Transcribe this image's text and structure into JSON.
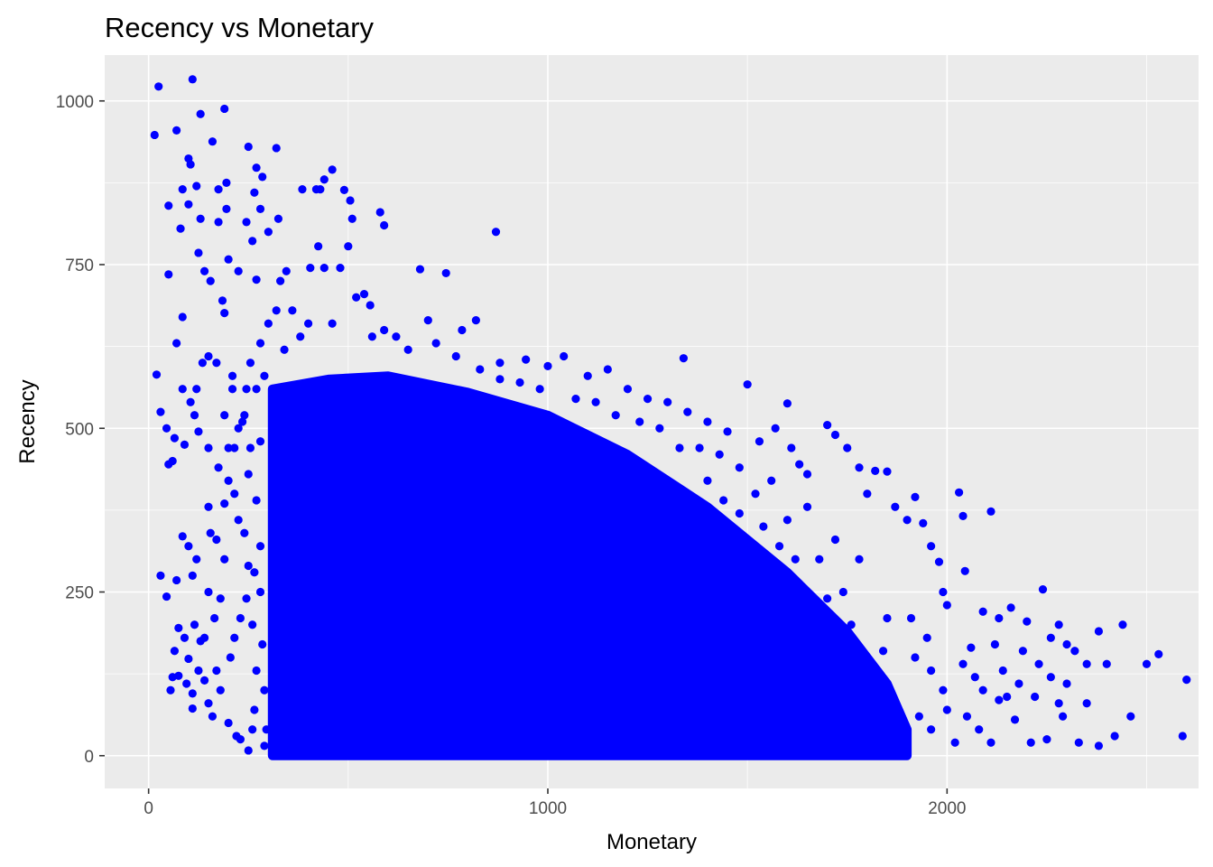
{
  "chart_data": {
    "type": "scatter",
    "title": "Recency vs Monetary",
    "xlabel": "Monetary",
    "ylabel": "Recency",
    "xlim": [
      -110,
      2630
    ],
    "ylim": [
      -50,
      1070
    ],
    "x_ticks": [
      0,
      1000,
      2000
    ],
    "x_tick_labels": [
      "0",
      "1000",
      "2000"
    ],
    "y_ticks": [
      0,
      250,
      500,
      750,
      1000
    ],
    "y_tick_labels": [
      "0",
      "250",
      "500",
      "750",
      "1000"
    ],
    "grid": true,
    "point_color": "#0000ff",
    "panel_background": "#ebebeb",
    "dense_region": {
      "description_free": true,
      "polygon": [
        [
          310,
          0
        ],
        [
          310,
          560
        ],
        [
          450,
          575
        ],
        [
          600,
          580
        ],
        [
          800,
          555
        ],
        [
          1000,
          520
        ],
        [
          1200,
          460
        ],
        [
          1400,
          380
        ],
        [
          1600,
          280
        ],
        [
          1750,
          190
        ],
        [
          1850,
          110
        ],
        [
          1900,
          40
        ],
        [
          1900,
          0
        ]
      ]
    },
    "sparse_points": [
      [
        15,
        948
      ],
      [
        25,
        1022
      ],
      [
        110,
        1033
      ],
      [
        130,
        980
      ],
      [
        190,
        988
      ],
      [
        70,
        955
      ],
      [
        160,
        938
      ],
      [
        250,
        930
      ],
      [
        100,
        912
      ],
      [
        105,
        903
      ],
      [
        85,
        865
      ],
      [
        120,
        870
      ],
      [
        50,
        840
      ],
      [
        100,
        842
      ],
      [
        175,
        865
      ],
      [
        195,
        875
      ],
      [
        270,
        898
      ],
      [
        285,
        884
      ],
      [
        320,
        928
      ],
      [
        460,
        895
      ],
      [
        440,
        880
      ],
      [
        490,
        864
      ],
      [
        505,
        848
      ],
      [
        430,
        865
      ],
      [
        80,
        805
      ],
      [
        130,
        820
      ],
      [
        175,
        815
      ],
      [
        195,
        835
      ],
      [
        245,
        815
      ],
      [
        265,
        860
      ],
      [
        280,
        835
      ],
      [
        300,
        800
      ],
      [
        325,
        820
      ],
      [
        385,
        865
      ],
      [
        420,
        865
      ],
      [
        510,
        820
      ],
      [
        580,
        830
      ],
      [
        590,
        810
      ],
      [
        870,
        800
      ],
      [
        260,
        786
      ],
      [
        425,
        778
      ],
      [
        500,
        778
      ],
      [
        125,
        768
      ],
      [
        200,
        758
      ],
      [
        50,
        735
      ],
      [
        140,
        740
      ],
      [
        225,
        740
      ],
      [
        345,
        740
      ],
      [
        405,
        745
      ],
      [
        440,
        745
      ],
      [
        480,
        745
      ],
      [
        680,
        743
      ],
      [
        745,
        737
      ],
      [
        270,
        727
      ],
      [
        330,
        725
      ],
      [
        155,
        725
      ],
      [
        85,
        670
      ],
      [
        70,
        630
      ],
      [
        185,
        695
      ],
      [
        190,
        676
      ],
      [
        20,
        582
      ],
      [
        30,
        525
      ],
      [
        45,
        500
      ],
      [
        65,
        485
      ],
      [
        50,
        445
      ],
      [
        60,
        450
      ],
      [
        85,
        560
      ],
      [
        105,
        540
      ],
      [
        115,
        520
      ],
      [
        125,
        495
      ],
      [
        150,
        470
      ],
      [
        90,
        475
      ],
      [
        150,
        380
      ],
      [
        190,
        385
      ],
      [
        85,
        335
      ],
      [
        100,
        320
      ],
      [
        120,
        300
      ],
      [
        155,
        340
      ],
      [
        30,
        275
      ],
      [
        70,
        268
      ],
      [
        45,
        243
      ],
      [
        110,
        275
      ],
      [
        150,
        250
      ],
      [
        75,
        195
      ],
      [
        90,
        180
      ],
      [
        115,
        200
      ],
      [
        130,
        175
      ],
      [
        65,
        160
      ],
      [
        100,
        148
      ],
      [
        125,
        130
      ],
      [
        60,
        120
      ],
      [
        75,
        122
      ],
      [
        95,
        110
      ],
      [
        55,
        100
      ],
      [
        110,
        95
      ],
      [
        140,
        115
      ],
      [
        170,
        130
      ],
      [
        180,
        100
      ],
      [
        150,
        80
      ],
      [
        160,
        60
      ],
      [
        110,
        72
      ],
      [
        200,
        50
      ],
      [
        220,
        30
      ],
      [
        250,
        8
      ],
      [
        230,
        25
      ],
      [
        260,
        40
      ],
      [
        205,
        150
      ],
      [
        215,
        180
      ],
      [
        230,
        210
      ],
      [
        245,
        240
      ],
      [
        265,
        280
      ],
      [
        200,
        420
      ],
      [
        215,
        470
      ],
      [
        235,
        510
      ],
      [
        210,
        560
      ],
      [
        255,
        600
      ],
      [
        280,
        630
      ],
      [
        300,
        660
      ],
      [
        320,
        680
      ],
      [
        360,
        680
      ],
      [
        400,
        660
      ],
      [
        460,
        660
      ],
      [
        520,
        700
      ],
      [
        540,
        705
      ],
      [
        555,
        688
      ],
      [
        700,
        665
      ],
      [
        785,
        650
      ],
      [
        820,
        665
      ],
      [
        720,
        630
      ],
      [
        880,
        600
      ],
      [
        945,
        605
      ],
      [
        1000,
        595
      ],
      [
        1040,
        610
      ],
      [
        1100,
        580
      ],
      [
        1150,
        590
      ],
      [
        1200,
        560
      ],
      [
        1250,
        545
      ],
      [
        1300,
        540
      ],
      [
        1340,
        607
      ],
      [
        1350,
        525
      ],
      [
        1400,
        510
      ],
      [
        1450,
        495
      ],
      [
        1500,
        567
      ],
      [
        1530,
        480
      ],
      [
        1570,
        500
      ],
      [
        1600,
        538
      ],
      [
        1610,
        470
      ],
      [
        1630,
        445
      ],
      [
        1650,
        430
      ],
      [
        1700,
        505
      ],
      [
        1720,
        490
      ],
      [
        1750,
        470
      ],
      [
        1780,
        440
      ],
      [
        1800,
        400
      ],
      [
        1820,
        435
      ],
      [
        1850,
        434
      ],
      [
        1870,
        380
      ],
      [
        1900,
        360
      ],
      [
        1920,
        395
      ],
      [
        1940,
        355
      ],
      [
        1960,
        320
      ],
      [
        1980,
        296
      ],
      [
        1990,
        250
      ],
      [
        2000,
        230
      ],
      [
        2030,
        402
      ],
      [
        2040,
        366
      ],
      [
        2045,
        282
      ],
      [
        2110,
        373
      ],
      [
        2090,
        220
      ],
      [
        2130,
        210
      ],
      [
        2160,
        226
      ],
      [
        2200,
        205
      ],
      [
        2240,
        254
      ],
      [
        2260,
        180
      ],
      [
        2280,
        200
      ],
      [
        2300,
        170
      ],
      [
        2320,
        160
      ],
      [
        2350,
        140
      ],
      [
        2380,
        190
      ],
      [
        2400,
        140
      ],
      [
        2440,
        200
      ],
      [
        2460,
        60
      ],
      [
        2500,
        140
      ],
      [
        2530,
        155
      ],
      [
        2590,
        30
      ],
      [
        2600,
        116
      ],
      [
        2420,
        30
      ],
      [
        2380,
        15
      ],
      [
        2330,
        20
      ],
      [
        2290,
        60
      ],
      [
        2250,
        25
      ],
      [
        2210,
        20
      ],
      [
        2170,
        55
      ],
      [
        2130,
        85
      ],
      [
        2110,
        20
      ],
      [
        2080,
        40
      ],
      [
        2050,
        60
      ],
      [
        2020,
        20
      ],
      [
        1990,
        100
      ],
      [
        1960,
        130
      ],
      [
        1950,
        180
      ],
      [
        1930,
        60
      ],
      [
        1920,
        150
      ],
      [
        1910,
        210
      ],
      [
        2060,
        165
      ],
      [
        2070,
        120
      ],
      [
        2140,
        130
      ],
      [
        2180,
        110
      ],
      [
        2230,
        140
      ],
      [
        2350,
        80
      ],
      [
        2300,
        110
      ],
      [
        2000,
        70
      ],
      [
        1890,
        20
      ],
      [
        1800,
        60
      ],
      [
        1850,
        210
      ],
      [
        1780,
        300
      ],
      [
        1720,
        330
      ],
      [
        1680,
        300
      ],
      [
        1650,
        380
      ],
      [
        1600,
        360
      ],
      [
        1560,
        420
      ],
      [
        1520,
        400
      ],
      [
        1480,
        440
      ],
      [
        1430,
        460
      ],
      [
        1380,
        470
      ],
      [
        1330,
        470
      ],
      [
        1280,
        500
      ],
      [
        1230,
        510
      ],
      [
        1170,
        520
      ],
      [
        1120,
        540
      ],
      [
        1070,
        545
      ],
      [
        980,
        560
      ],
      [
        930,
        570
      ],
      [
        880,
        575
      ],
      [
        830,
        590
      ],
      [
        770,
        610
      ],
      [
        650,
        620
      ],
      [
        620,
        640
      ],
      [
        590,
        650
      ],
      [
        560,
        640
      ],
      [
        380,
        640
      ],
      [
        340,
        620
      ],
      [
        290,
        580
      ],
      [
        270,
        560
      ],
      [
        240,
        520
      ],
      [
        280,
        480
      ],
      [
        250,
        430
      ],
      [
        270,
        390
      ],
      [
        240,
        340
      ],
      [
        280,
        320
      ],
      [
        250,
        290
      ],
      [
        280,
        250
      ],
      [
        260,
        200
      ],
      [
        285,
        170
      ],
      [
        270,
        130
      ],
      [
        290,
        100
      ],
      [
        265,
        70
      ],
      [
        295,
        40
      ],
      [
        290,
        15
      ],
      [
        180,
        240
      ],
      [
        165,
        210
      ],
      [
        140,
        180
      ],
      [
        190,
        300
      ],
      [
        170,
        330
      ],
      [
        225,
        360
      ],
      [
        215,
        400
      ],
      [
        175,
        440
      ],
      [
        200,
        470
      ],
      [
        225,
        500
      ],
      [
        255,
        470
      ],
      [
        150,
        610
      ],
      [
        170,
        600
      ],
      [
        210,
        580
      ],
      [
        245,
        560
      ],
      [
        190,
        520
      ],
      [
        120,
        560
      ],
      [
        135,
        600
      ],
      [
        1960,
        40
      ],
      [
        2040,
        140
      ],
      [
        2090,
        100
      ],
      [
        2120,
        170
      ],
      [
        2150,
        90
      ],
      [
        2190,
        160
      ],
      [
        2220,
        90
      ],
      [
        2260,
        120
      ],
      [
        2280,
        80
      ],
      [
        1840,
        160
      ],
      [
        1860,
        80
      ],
      [
        1830,
        20
      ],
      [
        1740,
        250
      ],
      [
        1760,
        200
      ],
      [
        1700,
        240
      ],
      [
        1660,
        200
      ],
      [
        1620,
        300
      ],
      [
        1580,
        320
      ],
      [
        1540,
        350
      ],
      [
        1480,
        370
      ],
      [
        1440,
        390
      ],
      [
        1400,
        420
      ]
    ]
  }
}
